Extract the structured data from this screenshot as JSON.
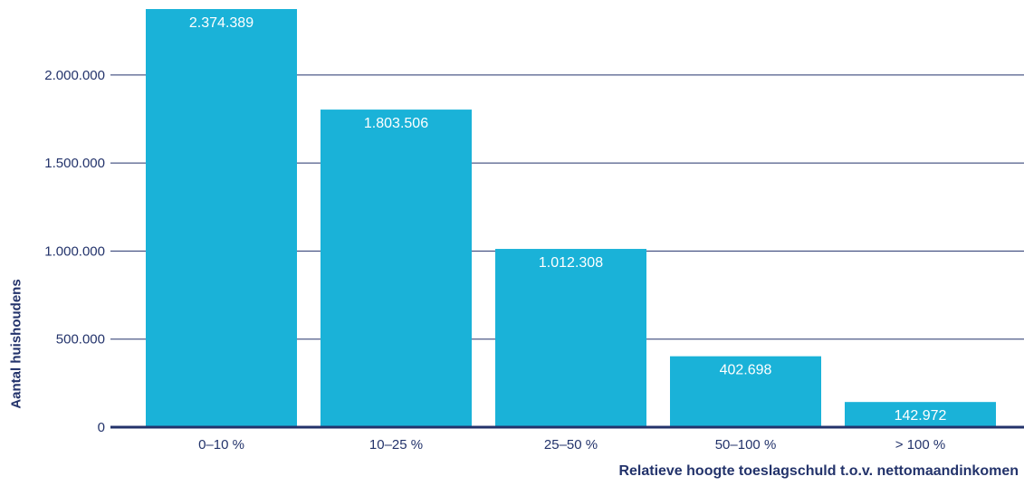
{
  "chart_data": {
    "type": "bar",
    "title": "",
    "xlabel": "Relatieve hoogte toeslagschuld t.o.v. nettomaandinkomen",
    "ylabel": "Aantal huishoudens",
    "categories": [
      "0–10 %",
      "10–25 %",
      "25–50 %",
      "50–100 %",
      "> 100 %"
    ],
    "values": [
      2374389,
      1803506,
      1012308,
      402698,
      142972
    ],
    "value_labels": [
      "2.374.389",
      "1.803.506",
      "1.012.308",
      "402.698",
      "142.972"
    ],
    "ylim": [
      0,
      2374389
    ],
    "yticks": [
      0,
      500000,
      1000000,
      1500000,
      2000000
    ],
    "ytick_labels": [
      "0",
      "500.000",
      "1.000.000",
      "1.500.000",
      "2.000.000"
    ],
    "grid": true,
    "legend": "none"
  },
  "colors": {
    "bar": "#1ab2d8",
    "axis": "#23336b",
    "grid": "#23336b",
    "text": "#23336b",
    "data_label": "#ffffff"
  }
}
